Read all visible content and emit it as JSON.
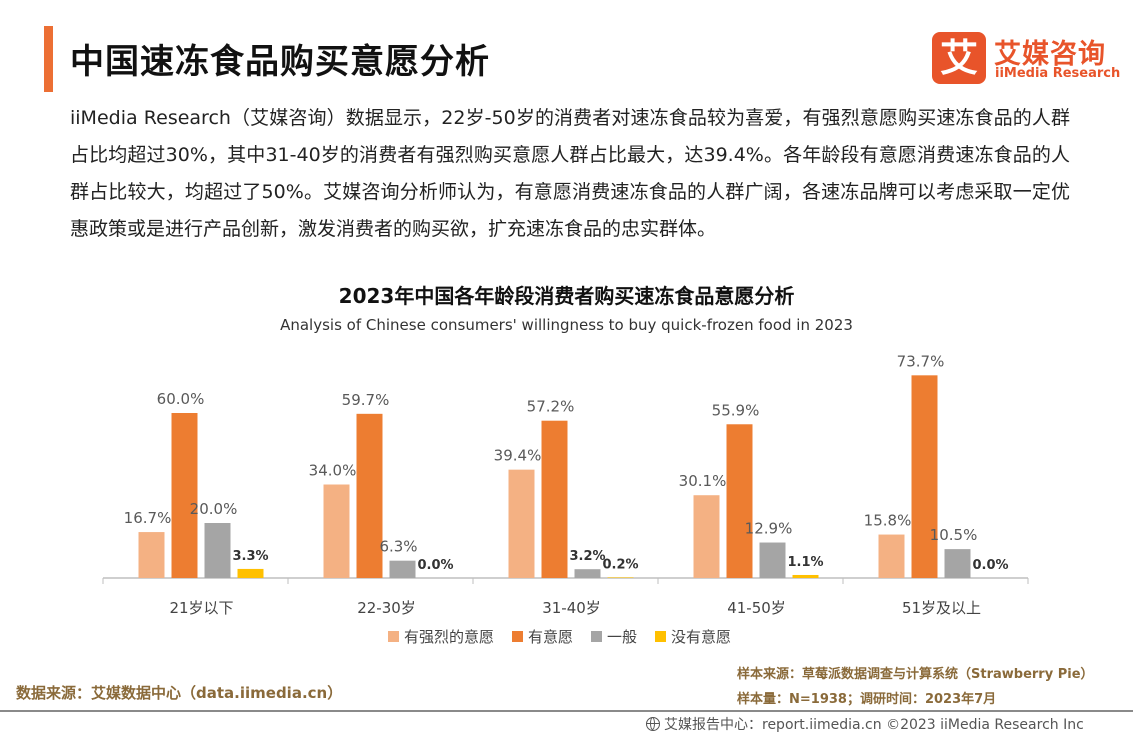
{
  "header": {
    "title": "中国速冻食品购买意愿分析",
    "logo_icon_char": "艾",
    "logo_cn": "艾媒咨询",
    "logo_en": "iiMedia Research"
  },
  "intro": "iiMedia Research（艾媒咨询）数据显示，22岁-50岁的消费者对速冻食品较为喜爱，有强烈意愿购买速冻食品的人群占比均超过30%，其中31-40岁的消费者有强烈购买意愿人群占比最大，达39.4%。各年龄段有意愿消费速冻食品的人群占比较大，均超过了50%。艾媒咨询分析师认为，有意愿消费速冻食品的人群广阔，各速冻品牌可以考虑采取一定优惠政策或是进行产品创新，激发消费者的购买欲，扩充速冻食品的忠实群体。",
  "chart_data": {
    "type": "bar",
    "title": "2023年中国各年龄段消费者购买速冻食品意愿分析",
    "subtitle": "Analysis of Chinese consumers' willingness to buy quick-frozen food in 2023",
    "categories": [
      "21岁以下",
      "22-30岁",
      "31-40岁",
      "41-50岁",
      "51岁及以上"
    ],
    "series": [
      {
        "name": "有强烈的意愿",
        "color": "#f4b183",
        "values": [
          16.7,
          34.0,
          39.4,
          30.1,
          15.8
        ]
      },
      {
        "name": "有意愿",
        "color": "#ed7d31",
        "values": [
          60.0,
          59.7,
          57.2,
          55.9,
          73.7
        ]
      },
      {
        "name": "一般",
        "color": "#a5a5a5",
        "values": [
          20.0,
          6.3,
          3.2,
          12.9,
          10.5
        ]
      },
      {
        "name": "没有意愿",
        "color": "#ffc000",
        "values": [
          3.3,
          0.0,
          0.2,
          1.1,
          0.0
        ]
      }
    ],
    "ylim": [
      0,
      75
    ],
    "legend_position": "bottom",
    "grid": false
  },
  "footer": {
    "data_source": "数据来源：艾媒数据中心（data.iimedia.cn）",
    "sample_source": "样本来源：草莓派数据调查与计算系统（Strawberry Pie）",
    "sample_size": "样本量：N=1938；调研时间：2023年7月",
    "copyright": "艾媒报告中心：report.iimedia.cn  ©2023  iiMedia Research  Inc"
  }
}
